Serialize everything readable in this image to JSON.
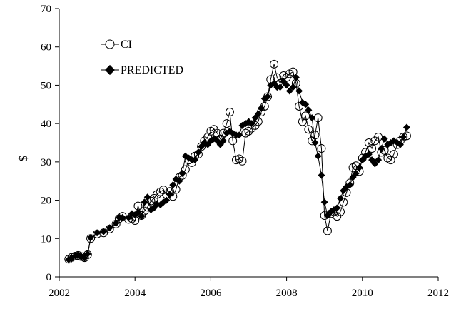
{
  "chart_data": {
    "type": "line",
    "title": "",
    "xlabel": "",
    "ylabel": "$",
    "xlim": [
      2002,
      2012
    ],
    "ylim": [
      0,
      70
    ],
    "x_ticks": [
      2002,
      2004,
      2006,
      2008,
      2010,
      2012
    ],
    "y_ticks": [
      0,
      10,
      20,
      30,
      40,
      50,
      60,
      70
    ],
    "grid": false,
    "legend_position": "top-left",
    "series": [
      {
        "name": "CI",
        "marker": "open-circle",
        "color": "#000000",
        "points": [
          [
            2002.25,
            4.6
          ],
          [
            2002.33,
            5.1
          ],
          [
            2002.42,
            5.4
          ],
          [
            2002.5,
            5.6
          ],
          [
            2002.58,
            5.3
          ],
          [
            2002.67,
            5.0
          ],
          [
            2002.75,
            5.8
          ],
          [
            2002.83,
            10.0
          ],
          [
            2003.0,
            11.2
          ],
          [
            2003.17,
            11.5
          ],
          [
            2003.33,
            12.5
          ],
          [
            2003.5,
            13.8
          ],
          [
            2003.58,
            15.2
          ],
          [
            2003.67,
            15.8
          ],
          [
            2003.83,
            15.0
          ],
          [
            2003.92,
            15.2
          ],
          [
            2004.0,
            14.7
          ],
          [
            2004.08,
            18.5
          ],
          [
            2004.17,
            16.0
          ],
          [
            2004.25,
            17.2
          ],
          [
            2004.33,
            18.2
          ],
          [
            2004.42,
            19.8
          ],
          [
            2004.5,
            20.5
          ],
          [
            2004.58,
            21.5
          ],
          [
            2004.67,
            22.2
          ],
          [
            2004.75,
            22.7
          ],
          [
            2004.83,
            21.5
          ],
          [
            2004.92,
            22.3
          ],
          [
            2005.0,
            21.0
          ],
          [
            2005.08,
            22.8
          ],
          [
            2005.17,
            26.0
          ],
          [
            2005.25,
            26.5
          ],
          [
            2005.33,
            28.0
          ],
          [
            2005.42,
            30.5
          ],
          [
            2005.5,
            29.8
          ],
          [
            2005.58,
            31.5
          ],
          [
            2005.67,
            32.0
          ],
          [
            2005.75,
            34.0
          ],
          [
            2005.83,
            35.5
          ],
          [
            2005.92,
            36.5
          ],
          [
            2006.0,
            38.0
          ],
          [
            2006.08,
            38.5
          ],
          [
            2006.17,
            37.5
          ],
          [
            2006.25,
            36.0
          ],
          [
            2006.33,
            37.5
          ],
          [
            2006.42,
            40.0
          ],
          [
            2006.5,
            43.0
          ],
          [
            2006.58,
            35.5
          ],
          [
            2006.67,
            30.5
          ],
          [
            2006.75,
            30.8
          ],
          [
            2006.83,
            30.2
          ],
          [
            2006.92,
            37.5
          ],
          [
            2007.0,
            38.0
          ],
          [
            2007.08,
            38.8
          ],
          [
            2007.17,
            39.5
          ],
          [
            2007.25,
            40.5
          ],
          [
            2007.33,
            43.0
          ],
          [
            2007.42,
            44.5
          ],
          [
            2007.5,
            47.0
          ],
          [
            2007.58,
            51.5
          ],
          [
            2007.67,
            55.5
          ],
          [
            2007.75,
            52.0
          ],
          [
            2007.83,
            50.5
          ],
          [
            2007.92,
            52.5
          ],
          [
            2008.0,
            52.0
          ],
          [
            2008.08,
            53.0
          ],
          [
            2008.17,
            53.5
          ],
          [
            2008.25,
            50.5
          ],
          [
            2008.33,
            44.5
          ],
          [
            2008.42,
            40.5
          ],
          [
            2008.5,
            42.0
          ],
          [
            2008.58,
            38.5
          ],
          [
            2008.67,
            35.5
          ],
          [
            2008.75,
            37.0
          ],
          [
            2008.83,
            41.5
          ],
          [
            2008.92,
            33.5
          ],
          [
            2009.0,
            16.0
          ],
          [
            2009.08,
            12.0
          ],
          [
            2009.17,
            16.5
          ],
          [
            2009.25,
            17.0
          ],
          [
            2009.33,
            15.8
          ],
          [
            2009.42,
            17.0
          ],
          [
            2009.5,
            19.5
          ],
          [
            2009.58,
            22.0
          ],
          [
            2009.67,
            24.5
          ],
          [
            2009.75,
            28.5
          ],
          [
            2009.83,
            29.0
          ],
          [
            2009.92,
            27.5
          ],
          [
            2010.0,
            31.0
          ],
          [
            2010.08,
            32.5
          ],
          [
            2010.17,
            35.0
          ],
          [
            2010.25,
            33.5
          ],
          [
            2010.33,
            35.5
          ],
          [
            2010.42,
            36.5
          ],
          [
            2010.5,
            32.5
          ],
          [
            2010.58,
            33.0
          ],
          [
            2010.67,
            31.0
          ],
          [
            2010.75,
            30.5
          ],
          [
            2010.83,
            32.0
          ],
          [
            2010.92,
            34.5
          ],
          [
            2011.0,
            35.5
          ],
          [
            2011.08,
            36.5
          ],
          [
            2011.17,
            36.8
          ]
        ]
      },
      {
        "name": "PREDICTED",
        "marker": "filled-diamond",
        "color": "#000000",
        "points": [
          [
            2002.25,
            4.5
          ],
          [
            2002.33,
            5.0
          ],
          [
            2002.42,
            5.5
          ],
          [
            2002.5,
            5.8
          ],
          [
            2002.58,
            5.2
          ],
          [
            2002.67,
            4.9
          ],
          [
            2002.75,
            6.0
          ],
          [
            2002.83,
            10.2
          ],
          [
            2003.0,
            11.5
          ],
          [
            2003.17,
            11.8
          ],
          [
            2003.33,
            12.8
          ],
          [
            2003.5,
            14.0
          ],
          [
            2003.58,
            15.5
          ],
          [
            2003.67,
            15.5
          ],
          [
            2003.83,
            15.5
          ],
          [
            2003.92,
            16.5
          ],
          [
            2004.0,
            16.2
          ],
          [
            2004.08,
            16.8
          ],
          [
            2004.17,
            15.8
          ],
          [
            2004.25,
            19.5
          ],
          [
            2004.33,
            20.8
          ],
          [
            2004.42,
            17.5
          ],
          [
            2004.5,
            18.0
          ],
          [
            2004.58,
            19.0
          ],
          [
            2004.67,
            18.8
          ],
          [
            2004.75,
            19.5
          ],
          [
            2004.83,
            20.0
          ],
          [
            2004.92,
            21.5
          ],
          [
            2005.0,
            24.0
          ],
          [
            2005.08,
            25.5
          ],
          [
            2005.17,
            25.0
          ],
          [
            2005.25,
            27.0
          ],
          [
            2005.33,
            31.5
          ],
          [
            2005.42,
            31.0
          ],
          [
            2005.5,
            30.5
          ],
          [
            2005.58,
            30.5
          ],
          [
            2005.67,
            32.5
          ],
          [
            2005.75,
            34.0
          ],
          [
            2005.83,
            35.0
          ],
          [
            2005.92,
            34.5
          ],
          [
            2006.0,
            35.5
          ],
          [
            2006.08,
            36.0
          ],
          [
            2006.17,
            35.5
          ],
          [
            2006.25,
            34.5
          ],
          [
            2006.33,
            35.5
          ],
          [
            2006.42,
            37.5
          ],
          [
            2006.5,
            38.0
          ],
          [
            2006.58,
            37.5
          ],
          [
            2006.67,
            37.0
          ],
          [
            2006.75,
            37.0
          ],
          [
            2006.83,
            39.5
          ],
          [
            2006.92,
            40.0
          ],
          [
            2007.0,
            40.5
          ],
          [
            2007.08,
            40.0
          ],
          [
            2007.17,
            41.5
          ],
          [
            2007.25,
            42.5
          ],
          [
            2007.33,
            44.0
          ],
          [
            2007.42,
            46.5
          ],
          [
            2007.5,
            47.0
          ],
          [
            2007.58,
            50.0
          ],
          [
            2007.67,
            50.5
          ],
          [
            2007.75,
            49.5
          ],
          [
            2007.83,
            49.5
          ],
          [
            2007.92,
            51.0
          ],
          [
            2008.0,
            50.0
          ],
          [
            2008.08,
            48.5
          ],
          [
            2008.17,
            49.5
          ],
          [
            2008.25,
            52.0
          ],
          [
            2008.33,
            48.5
          ],
          [
            2008.42,
            45.5
          ],
          [
            2008.5,
            45.0
          ],
          [
            2008.58,
            43.5
          ],
          [
            2008.67,
            41.5
          ],
          [
            2008.75,
            35.0
          ],
          [
            2008.83,
            31.5
          ],
          [
            2008.92,
            26.5
          ],
          [
            2009.0,
            19.5
          ],
          [
            2009.08,
            16.0
          ],
          [
            2009.17,
            17.0
          ],
          [
            2009.25,
            17.5
          ],
          [
            2009.33,
            18.0
          ],
          [
            2009.42,
            20.5
          ],
          [
            2009.5,
            22.5
          ],
          [
            2009.58,
            23.5
          ],
          [
            2009.67,
            24.0
          ],
          [
            2009.75,
            26.0
          ],
          [
            2009.83,
            27.0
          ],
          [
            2009.92,
            28.5
          ],
          [
            2010.0,
            30.5
          ],
          [
            2010.08,
            31.5
          ],
          [
            2010.17,
            32.0
          ],
          [
            2010.25,
            30.5
          ],
          [
            2010.33,
            29.5
          ],
          [
            2010.42,
            30.5
          ],
          [
            2010.5,
            33.5
          ],
          [
            2010.58,
            36.0
          ],
          [
            2010.67,
            34.5
          ],
          [
            2010.75,
            35.0
          ],
          [
            2010.83,
            35.5
          ],
          [
            2010.92,
            35.0
          ],
          [
            2011.0,
            34.5
          ],
          [
            2011.08,
            36.5
          ],
          [
            2011.17,
            39.0
          ]
        ]
      }
    ]
  }
}
